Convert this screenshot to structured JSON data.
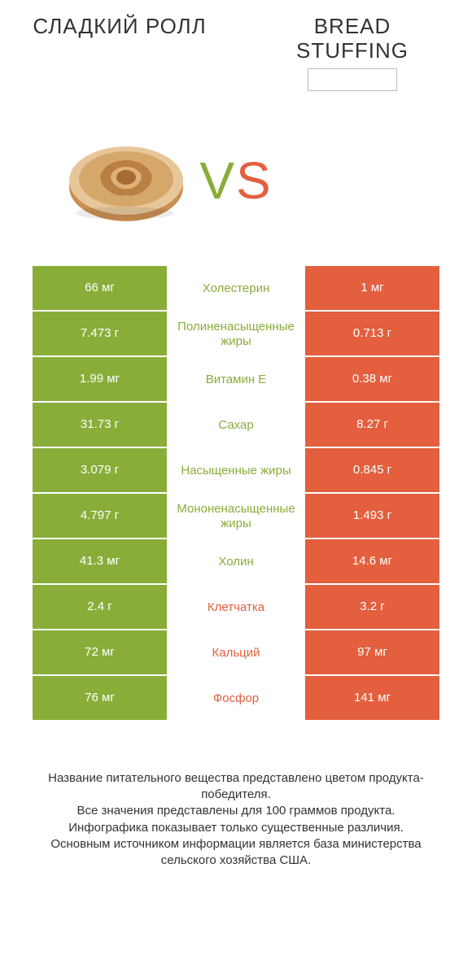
{
  "header": {
    "left_title": "СЛАДКИЙ РОЛЛ",
    "right_title": "BREAD STUFFING"
  },
  "vs": {
    "v": "V",
    "s": "S"
  },
  "colors": {
    "green": "#8aad3a",
    "orange": "#e35f3e",
    "text": "#333333",
    "bg": "#ffffff",
    "border_gray": "#bcbcbc"
  },
  "table": {
    "rows": [
      {
        "left": "66 мг",
        "label": "Холестерин",
        "right": "1 мг",
        "winner": "left"
      },
      {
        "left": "7.473 г",
        "label": "Полиненасыщенные жиры",
        "right": "0.713 г",
        "winner": "left"
      },
      {
        "left": "1.99 мг",
        "label": "Витамин E",
        "right": "0.38 мг",
        "winner": "left"
      },
      {
        "left": "31.73 г",
        "label": "Сахар",
        "right": "8.27 г",
        "winner": "left"
      },
      {
        "left": "3.079 г",
        "label": "Насыщенные жиры",
        "right": "0.845 г",
        "winner": "left"
      },
      {
        "left": "4.797 г",
        "label": "Мононенасыщенные жиры",
        "right": "1.493 г",
        "winner": "left"
      },
      {
        "left": "41.3 мг",
        "label": "Холин",
        "right": "14.6 мг",
        "winner": "left"
      },
      {
        "left": "2.4 г",
        "label": "Клетчатка",
        "right": "3.2 г",
        "winner": "right"
      },
      {
        "left": "72 мг",
        "label": "Кальций",
        "right": "97 мг",
        "winner": "right"
      },
      {
        "left": "76 мг",
        "label": "Фосфор",
        "right": "141 мг",
        "winner": "right"
      }
    ]
  },
  "footer": {
    "line1": "Название питательного вещества представлено цветом продукта-победителя.",
    "line2": "Все значения представлены для 100 граммов продукта.",
    "line3": "Инфографика показывает только существенные различия.",
    "line4": "Основным источником информации является база министерства сельского хозяйства США."
  }
}
